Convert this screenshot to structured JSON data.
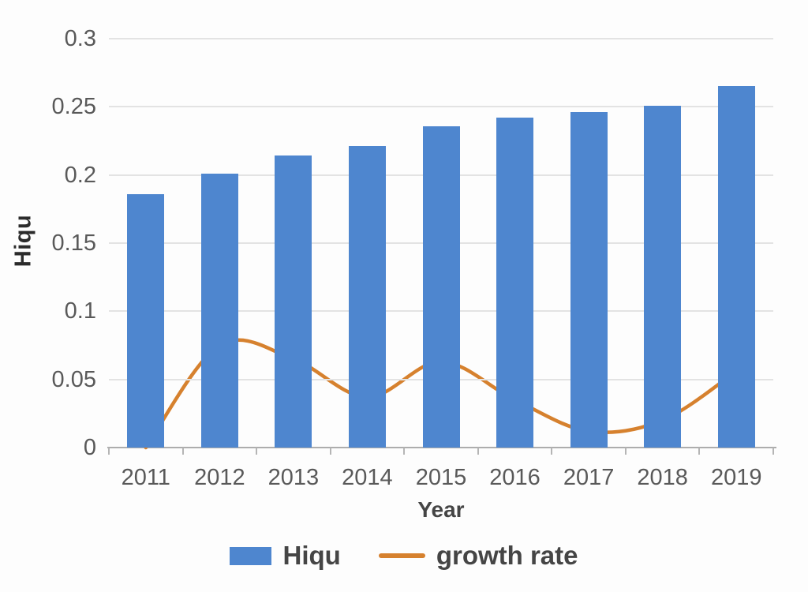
{
  "chart_data": {
    "type": "bar+line",
    "title": "",
    "categories": [
      "2011",
      "2012",
      "2013",
      "2014",
      "2015",
      "2016",
      "2017",
      "2018",
      "2019"
    ],
    "series": [
      {
        "name": "Hiqu",
        "type": "bar",
        "color": "#4e86cf",
        "values": [
          0.186,
          0.201,
          0.214,
          0.221,
          0.236,
          0.242,
          0.246,
          0.251,
          0.265
        ]
      },
      {
        "name": "growth rate",
        "type": "line",
        "color": "#d6812e",
        "values": [
          0.0,
          0.075,
          0.065,
          0.037,
          0.063,
          0.035,
          0.012,
          0.02,
          0.056
        ]
      }
    ],
    "xlabel": "Year",
    "ylabel": "Hiqu",
    "ylim": [
      0,
      0.3
    ],
    "yticks": [
      0,
      0.05,
      0.1,
      0.15,
      0.2,
      0.25,
      0.3
    ],
    "ytick_labels": [
      "0",
      "0.05",
      "0.1",
      "0.15",
      "0.2",
      "0.25",
      "0.3"
    ],
    "grid": true,
    "legend_position": "bottom",
    "axis_text_color": "#595959",
    "label_text_color": "#454545"
  }
}
